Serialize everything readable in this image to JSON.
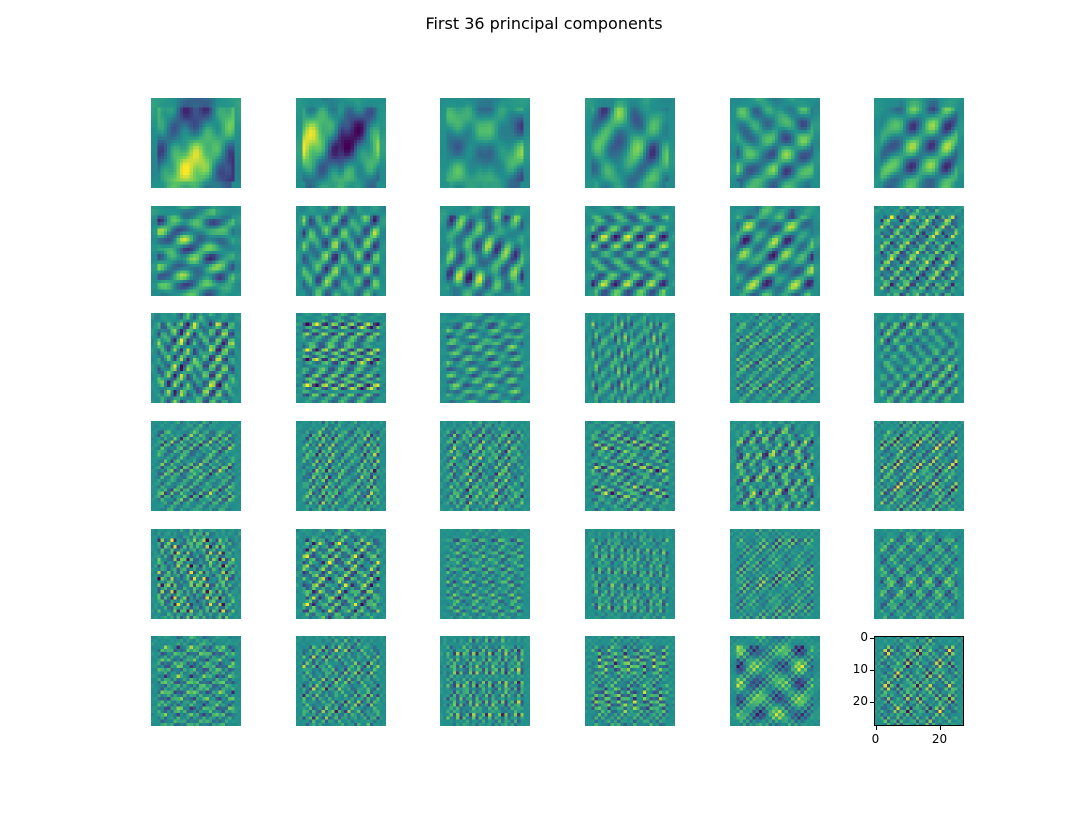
{
  "figure": {
    "title": "First 36 principal components",
    "grid": {
      "rows": 6,
      "cols": 6,
      "count": 36
    },
    "colormap": [
      "#440154",
      "#3b528b",
      "#21918c",
      "#5ec962",
      "#fde725"
    ],
    "last_axes": {
      "y_ticks": [
        "0",
        "10",
        "20"
      ],
      "x_ticks": [
        "0",
        "20"
      ]
    }
  }
}
